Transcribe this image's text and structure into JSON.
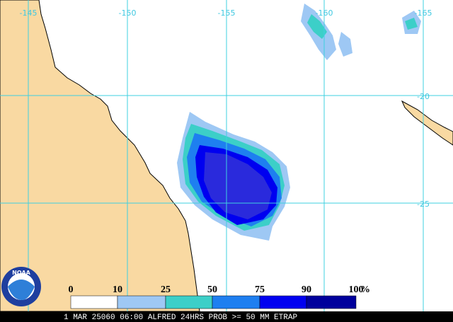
{
  "map": {
    "longitude_labels": [
      "-145",
      "-150",
      "-155",
      "-160",
      "-165"
    ],
    "latitude_labels": [
      "-20",
      "-25"
    ],
    "legend": {
      "stops": [
        "0",
        "10",
        "25",
        "50",
        "75",
        "90",
        "100"
      ],
      "unit": "%",
      "colors": [
        "#ffffff",
        "#9ec8f4",
        "#3ccfc8",
        "#1e7ff0",
        "#0000f0",
        "#00009c"
      ]
    },
    "logo": "NOAA",
    "caption": "1 MAR 25060 06:00 ALFRED 24HRS PROB >= 50 MM ETRAP"
  }
}
